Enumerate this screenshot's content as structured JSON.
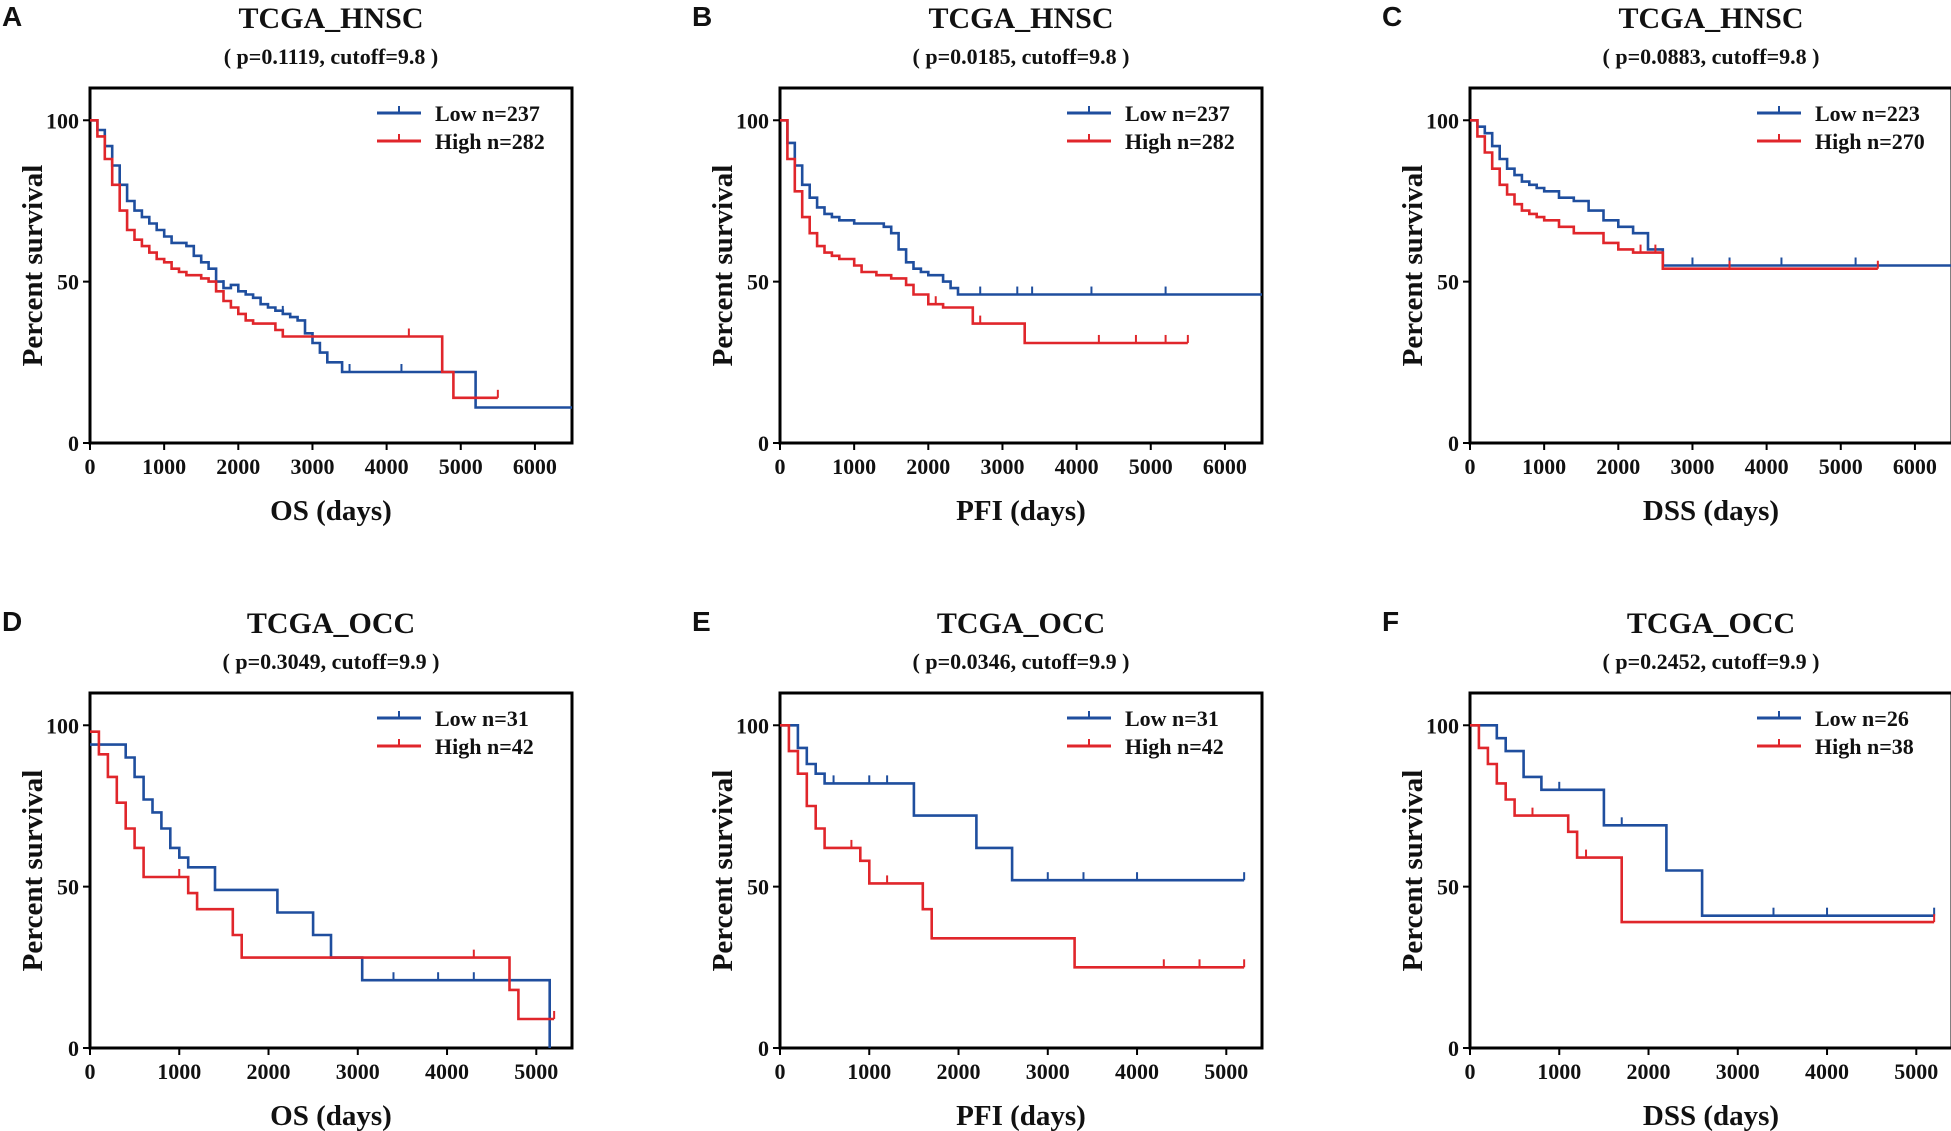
{
  "colors": {
    "low": "#1f4e9e",
    "high": "#e0262b",
    "axis": "#000000"
  },
  "y_axis_label": "Percent survival",
  "chart_data": [
    {
      "type": "line",
      "panel": "A",
      "title": "TCGA_HNSC",
      "subtitle": "( p=0.1119, cutoff=9.8 )",
      "xlabel": "OS (days)",
      "ylabel": "Percent survival",
      "xlim": [
        0,
        6500
      ],
      "ylim": [
        0,
        110
      ],
      "xticks": [
        0,
        1000,
        2000,
        3000,
        4000,
        5000,
        6000
      ],
      "yticks": [
        0,
        50,
        100
      ],
      "legend": {
        "position": "top-right",
        "entries": [
          "Low  n=237",
          "High n=282"
        ]
      },
      "series": [
        {
          "name": "Low",
          "n": 237,
          "x": [
            0,
            100,
            200,
            300,
            400,
            500,
            600,
            700,
            800,
            900,
            1000,
            1100,
            1200,
            1300,
            1400,
            1500,
            1600,
            1700,
            1800,
            1900,
            2000,
            2100,
            2200,
            2300,
            2400,
            2500,
            2600,
            2700,
            2800,
            2900,
            3000,
            3100,
            3200,
            3400,
            3600,
            3800,
            4000,
            4200,
            4400,
            4600,
            4800,
            5000,
            5200,
            5400,
            5800,
            6500
          ],
          "y": [
            100,
            97,
            92,
            86,
            80,
            75,
            72,
            70,
            68,
            66,
            64,
            62,
            62,
            61,
            58,
            56,
            54,
            50,
            48,
            49,
            47,
            46,
            45,
            43,
            42,
            41,
            40,
            39,
            38,
            34,
            31,
            28,
            25,
            22,
            22,
            22,
            22,
            22,
            22,
            22,
            22,
            22,
            11,
            11,
            11,
            11
          ],
          "censor_x": [
            1800,
            2600,
            3500,
            4200
          ]
        },
        {
          "name": "High",
          "n": 282,
          "x": [
            0,
            100,
            200,
            300,
            400,
            500,
            600,
            700,
            800,
            900,
            1000,
            1100,
            1200,
            1300,
            1400,
            1500,
            1600,
            1700,
            1800,
            1900,
            2000,
            2100,
            2200,
            2300,
            2400,
            2500,
            2600,
            2700,
            2800,
            3000,
            3300,
            3600,
            3900,
            4200,
            4500,
            4700,
            4750,
            4900,
            5100,
            5500
          ],
          "y": [
            100,
            95,
            88,
            80,
            72,
            66,
            63,
            61,
            59,
            57,
            56,
            54,
            53,
            52,
            52,
            51,
            50,
            47,
            44,
            42,
            40,
            38,
            37,
            37,
            37,
            35,
            33,
            33,
            33,
            33,
            33,
            33,
            33,
            33,
            33,
            33,
            22,
            14,
            14,
            14
          ],
          "censor_x": [
            4300,
            5500
          ]
        }
      ]
    },
    {
      "type": "line",
      "panel": "B",
      "title": "TCGA_HNSC",
      "subtitle": "( p=0.0185, cutoff=9.8 )",
      "xlabel": "PFI (days)",
      "ylabel": "Percent survival",
      "xlim": [
        0,
        6500
      ],
      "ylim": [
        0,
        110
      ],
      "xticks": [
        0,
        1000,
        2000,
        3000,
        4000,
        5000,
        6000
      ],
      "yticks": [
        0,
        50,
        100
      ],
      "legend": {
        "position": "top-right",
        "entries": [
          "Low  n=237",
          "High n=282"
        ]
      },
      "series": [
        {
          "name": "Low",
          "n": 237,
          "x": [
            0,
            100,
            200,
            300,
            400,
            500,
            600,
            700,
            800,
            900,
            1000,
            1200,
            1400,
            1500,
            1600,
            1700,
            1800,
            1900,
            2000,
            2200,
            2300,
            2400,
            2600,
            3000,
            4000,
            5000,
            6500
          ],
          "y": [
            100,
            93,
            86,
            80,
            76,
            73,
            71,
            70,
            69,
            69,
            68,
            68,
            67,
            65,
            60,
            56,
            54,
            53,
            52,
            50,
            48,
            46,
            46,
            46,
            46,
            46,
            46
          ],
          "censor_x": [
            1700,
            2700,
            3200,
            3400,
            4200,
            5200
          ]
        },
        {
          "name": "High",
          "n": 282,
          "x": [
            0,
            100,
            200,
            300,
            400,
            500,
            600,
            700,
            800,
            900,
            1000,
            1100,
            1300,
            1500,
            1700,
            1800,
            2000,
            2200,
            2400,
            2600,
            2900,
            3300,
            3600,
            4000,
            4500,
            5000,
            5500
          ],
          "y": [
            100,
            88,
            78,
            70,
            65,
            61,
            59,
            58,
            57,
            57,
            55,
            53,
            52,
            51,
            49,
            46,
            43,
            42,
            42,
            37,
            37,
            31,
            31,
            31,
            31,
            31,
            31
          ],
          "censor_x": [
            2100,
            2700,
            4300,
            4800,
            5200,
            5500
          ]
        }
      ]
    },
    {
      "type": "line",
      "panel": "C",
      "title": "TCGA_HNSC",
      "subtitle": "( p=0.0883, cutoff=9.8 )",
      "xlabel": "DSS (days)",
      "ylabel": "Percent survival",
      "xlim": [
        0,
        6500
      ],
      "ylim": [
        0,
        110
      ],
      "xticks": [
        0,
        1000,
        2000,
        3000,
        4000,
        5000,
        6000
      ],
      "yticks": [
        0,
        50,
        100
      ],
      "legend": {
        "position": "top-right",
        "entries": [
          "Low  n=223",
          "High n=270"
        ]
      },
      "series": [
        {
          "name": "Low",
          "n": 223,
          "x": [
            0,
            100,
            200,
            300,
            400,
            500,
            600,
            700,
            800,
            900,
            1000,
            1200,
            1400,
            1600,
            1800,
            2000,
            2200,
            2400,
            2600,
            3000,
            4000,
            5000,
            6500
          ],
          "y": [
            100,
            98,
            96,
            92,
            88,
            85,
            83,
            81,
            80,
            79,
            78,
            76,
            75,
            72,
            69,
            67,
            65,
            60,
            55,
            55,
            55,
            55,
            55
          ],
          "censor_x": [
            3000,
            3500,
            4200,
            5200
          ]
        },
        {
          "name": "High",
          "n": 270,
          "x": [
            0,
            100,
            200,
            300,
            400,
            500,
            600,
            700,
            800,
            900,
            1000,
            1200,
            1400,
            1600,
            1800,
            2000,
            2200,
            2400,
            2600,
            3000,
            4000,
            5000,
            5500
          ],
          "y": [
            100,
            95,
            90,
            85,
            80,
            77,
            74,
            72,
            71,
            70,
            69,
            67,
            65,
            65,
            62,
            60,
            59,
            59,
            54,
            54,
            54,
            54,
            54
          ],
          "censor_x": [
            2300,
            2500,
            3500,
            5500
          ]
        }
      ]
    },
    {
      "type": "line",
      "panel": "D",
      "title": "TCGA_OCC",
      "subtitle": "( p=0.3049, cutoff=9.9 )",
      "xlabel": "OS (days)",
      "ylabel": "Percent survival",
      "xlim": [
        0,
        5400
      ],
      "ylim": [
        0,
        110
      ],
      "xticks": [
        0,
        1000,
        2000,
        3000,
        4000,
        5000
      ],
      "yticks": [
        0,
        50,
        100
      ],
      "legend": {
        "position": "top-right",
        "entries": [
          "Low  n=31",
          "High n=42"
        ]
      },
      "series": [
        {
          "name": "Low",
          "n": 31,
          "x": [
            0,
            200,
            400,
            500,
            600,
            700,
            800,
            900,
            1000,
            1100,
            1400,
            1800,
            2100,
            2500,
            2700,
            3050,
            3500,
            4000,
            4500,
            5000,
            5150,
            5150
          ],
          "y": [
            94,
            94,
            90,
            84,
            77,
            73,
            68,
            62,
            59,
            56,
            49,
            49,
            42,
            35,
            28,
            21,
            21,
            21,
            21,
            21,
            21,
            0
          ],
          "censor_x": [
            1400,
            3400,
            3900,
            4300
          ]
        },
        {
          "name": "High",
          "n": 42,
          "x": [
            0,
            100,
            200,
            300,
            400,
            500,
            600,
            800,
            1100,
            1200,
            1600,
            1700,
            2000,
            2500,
            3000,
            3500,
            4000,
            4700,
            4800,
            5200
          ],
          "y": [
            98,
            91,
            84,
            76,
            68,
            62,
            53,
            53,
            48,
            43,
            35,
            28,
            28,
            28,
            28,
            28,
            28,
            18,
            9,
            9
          ],
          "censor_x": [
            1000,
            4300,
            5200
          ]
        }
      ]
    },
    {
      "type": "line",
      "panel": "E",
      "title": "TCGA_OCC",
      "subtitle": "( p=0.0346, cutoff=9.9 )",
      "xlabel": "PFI (days)",
      "ylabel": "Percent survival",
      "xlim": [
        0,
        5400
      ],
      "ylim": [
        0,
        110
      ],
      "xticks": [
        0,
        1000,
        2000,
        3000,
        4000,
        5000
      ],
      "yticks": [
        0,
        50,
        100
      ],
      "legend": {
        "position": "top-right",
        "entries": [
          "Low  n=31",
          "High n=42"
        ]
      },
      "series": [
        {
          "name": "Low",
          "n": 31,
          "x": [
            0,
            200,
            300,
            400,
            500,
            1400,
            1500,
            2000,
            2200,
            2500,
            2600,
            3000,
            4000,
            5200
          ],
          "y": [
            100,
            93,
            88,
            85,
            82,
            82,
            72,
            72,
            62,
            62,
            52,
            52,
            52,
            52
          ],
          "censor_x": [
            600,
            1000,
            1200,
            3000,
            3400,
            4000,
            5200
          ]
        },
        {
          "name": "High",
          "n": 42,
          "x": [
            0,
            100,
            200,
            300,
            400,
            500,
            700,
            900,
            1000,
            1300,
            1600,
            1700,
            2000,
            3000,
            3300,
            4000,
            5200
          ],
          "y": [
            100,
            92,
            85,
            75,
            68,
            62,
            62,
            58,
            51,
            51,
            43,
            34,
            34,
            34,
            25,
            25,
            25
          ],
          "censor_x": [
            800,
            1200,
            4300,
            4700,
            5200
          ]
        }
      ]
    },
    {
      "type": "line",
      "panel": "F",
      "title": "TCGA_OCC",
      "subtitle": "( p=0.2452, cutoff=9.9 )",
      "xlabel": "DSS (days)",
      "ylabel": "Percent survival",
      "xlim": [
        0,
        5400
      ],
      "ylim": [
        0,
        110
      ],
      "xticks": [
        0,
        1000,
        2000,
        3000,
        4000,
        5000
      ],
      "yticks": [
        0,
        50,
        100
      ],
      "legend": {
        "position": "top-right",
        "entries": [
          "Low  n=26",
          "High n=38"
        ]
      },
      "series": [
        {
          "name": "Low",
          "n": 26,
          "x": [
            0,
            300,
            400,
            600,
            800,
            1400,
            1500,
            2100,
            2200,
            2600,
            3000,
            4000,
            5200
          ],
          "y": [
            100,
            96,
            92,
            84,
            80,
            80,
            69,
            69,
            55,
            41,
            41,
            41,
            41
          ],
          "censor_x": [
            600,
            1000,
            1700,
            3400,
            4000,
            5200
          ]
        },
        {
          "name": "High",
          "n": 38,
          "x": [
            0,
            100,
            200,
            300,
            400,
            500,
            800,
            1100,
            1200,
            1600,
            1700,
            2000,
            3000,
            4000,
            5200
          ],
          "y": [
            100,
            93,
            88,
            82,
            77,
            72,
            72,
            67,
            59,
            59,
            39,
            39,
            39,
            39,
            39
          ],
          "censor_x": [
            700,
            1300,
            5200
          ]
        }
      ]
    }
  ]
}
